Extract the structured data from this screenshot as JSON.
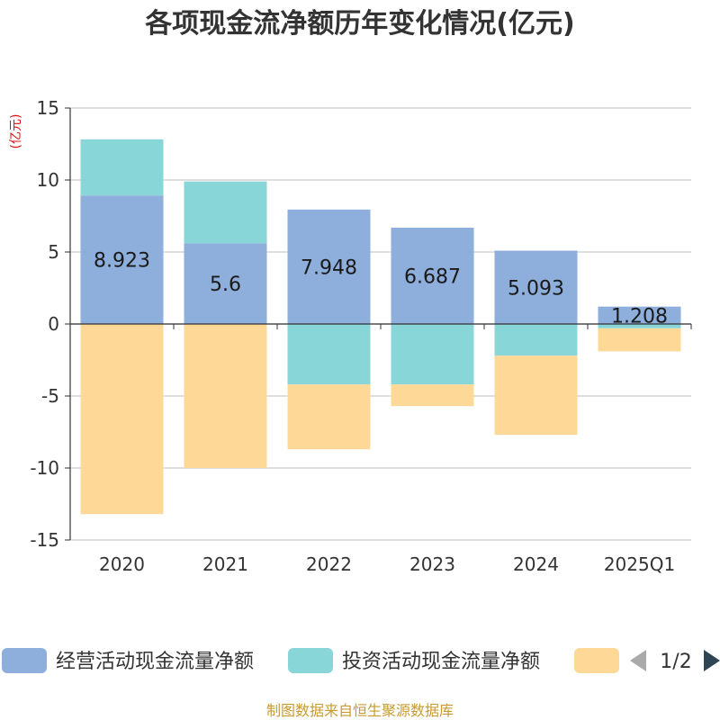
{
  "page": {
    "title": "各项现金流净额历年变化情况(亿元)",
    "source": "制图数据来自恒生聚源数据库"
  },
  "chart_data": {
    "type": "bar",
    "stacked": true,
    "unit_label": "(亿元)",
    "categories": [
      "2020",
      "2021",
      "2022",
      "2023",
      "2024",
      "2025Q1"
    ],
    "ylim": [
      -15,
      15
    ],
    "yticks": [
      15,
      10,
      5,
      0,
      -5,
      -10,
      -15
    ],
    "grid": true,
    "legend_position": "bottom",
    "series": [
      {
        "name": "经营活动现金流量净额",
        "color": "#8eaedb",
        "values": [
          8.923,
          5.6,
          7.948,
          6.687,
          5.093,
          1.208
        ],
        "labels": [
          "8.923",
          "5.6",
          "7.948",
          "6.687",
          "5.093",
          "1.208"
        ]
      },
      {
        "name": "投资活动现金流量净额",
        "color": "#88d6d8",
        "values": [
          3.9,
          4.3,
          -4.2,
          -4.2,
          -2.2,
          -0.3
        ]
      },
      {
        "name": "",
        "color": "#fdd897",
        "values": [
          -13.2,
          -10.0,
          -4.5,
          -1.5,
          -5.5,
          -1.6
        ]
      }
    ]
  },
  "legend": {
    "page_indicator": "1/2",
    "prev_color": "#aaaaaa",
    "next_color": "#2f4554"
  }
}
